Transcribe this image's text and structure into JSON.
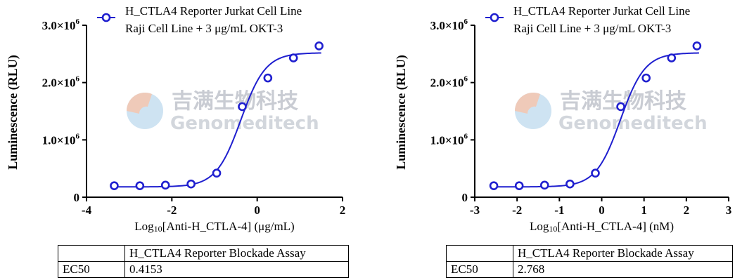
{
  "watermark": {
    "cn": "吉满生物科技",
    "en": "Genomeditech",
    "icon": "genomeditech-logo"
  },
  "colors": {
    "series": "#1f1fcf",
    "axis": "#000000",
    "watermark_cn": "#c9ccd3",
    "watermark_en": "#d2d6dc",
    "logo_orange": "#f3c7b3",
    "logo_blue": "#b9d7ec"
  },
  "chart_data": [
    {
      "type": "scatter",
      "legend": [
        "H_CTLA4 Reporter Jurkat Cell Line",
        "Raji Cell Line + 3 μg/mL OKT-3"
      ],
      "legend_position": "top",
      "xlabel": "Log10[Anti-H_CTLA-4] (μg/mL)",
      "ylabel": "Luminescence (RLU)",
      "xlim": [
        -4,
        2
      ],
      "ylim": [
        0,
        3000000
      ],
      "xticks": [
        -4,
        -2,
        0,
        2
      ],
      "xtick_labels": [
        "-4",
        "-2",
        "0",
        "2"
      ],
      "yticks": [
        0,
        1000000,
        2000000,
        3000000
      ],
      "ytick_labels": [
        "0",
        "1.0×10",
        "2.0×10",
        "3.0×10"
      ],
      "ytick_exp": [
        "",
        "6",
        "6",
        "6"
      ],
      "grid": false,
      "series": [
        {
          "x": [
            -3.35,
            -2.75,
            -2.15,
            -1.55,
            -0.95,
            -0.35,
            0.25,
            0.85,
            1.45
          ],
          "y": [
            200000,
            200000,
            210000,
            230000,
            420000,
            1580000,
            2080000,
            2430000,
            2640000
          ],
          "fit": {
            "bottom": 180000,
            "top": 2520000,
            "logEC50": -0.382,
            "hill": 1.5
          }
        }
      ],
      "table": {
        "header": "H_CTLA4 Reporter Blockade Assay",
        "row_label": "EC50",
        "value": "0.4153"
      }
    },
    {
      "type": "scatter",
      "legend": [
        "H_CTLA4 Reporter Jurkat Cell Line",
        "Raji Cell Line + 3 μg/mL OKT-3"
      ],
      "legend_position": "top",
      "xlabel": "Log10[Anti-H_CTLA-4] (nM)",
      "ylabel": "Luminescence (RLU)",
      "xlim": [
        -3,
        3
      ],
      "ylim": [
        0,
        3000000
      ],
      "xticks": [
        -3,
        -2,
        -1,
        0,
        1,
        2,
        3
      ],
      "xtick_labels": [
        "-3",
        "-2",
        "-1",
        "0",
        "1",
        "2",
        "3"
      ],
      "yticks": [
        0,
        1000000,
        2000000,
        3000000
      ],
      "ytick_labels": [
        "0",
        "1.0×10",
        "2.0×10",
        "3.0×10"
      ],
      "ytick_exp": [
        "",
        "6",
        "6",
        "6"
      ],
      "grid": false,
      "series": [
        {
          "x": [
            -2.55,
            -1.95,
            -1.35,
            -0.75,
            -0.15,
            0.45,
            1.05,
            1.65,
            2.25
          ],
          "y": [
            200000,
            200000,
            210000,
            230000,
            420000,
            1580000,
            2080000,
            2430000,
            2640000
          ],
          "fit": {
            "bottom": 180000,
            "top": 2520000,
            "logEC50": 0.442,
            "hill": 1.5
          }
        }
      ],
      "table": {
        "header": "H_CTLA4 Reporter Blockade Assay",
        "row_label": "EC50",
        "value": "2.768"
      }
    }
  ]
}
